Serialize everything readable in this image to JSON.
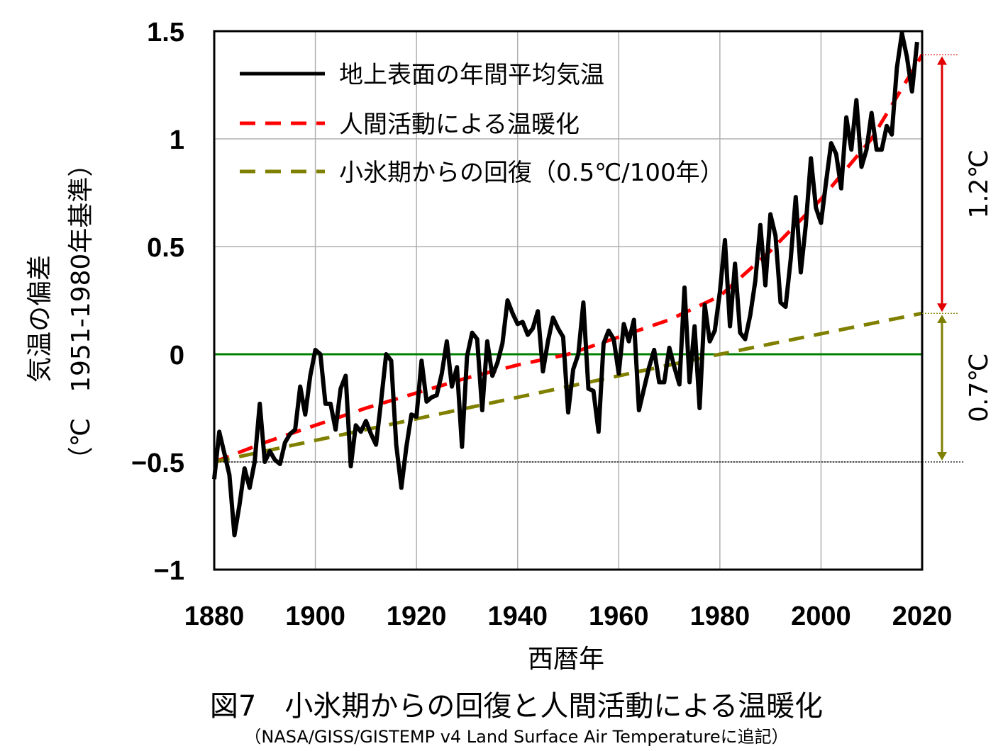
{
  "chart_data": {
    "type": "line",
    "title": "図7　小氷期からの回復と人間活動による温暖化",
    "source": "（NASA/GISS/GISTEMP v4 Land Surface Air Temperatureに追記）",
    "xlabel": "西暦年",
    "ylabel_line1": "気温の偏差",
    "ylabel_line2": "（℃　1951-1980年基準）",
    "xlim": [
      1880,
      2020
    ],
    "ylim": [
      -1,
      1.5
    ],
    "grid": true,
    "legend_position": "top-left",
    "x_ticks": [
      "1880",
      "1900",
      "1920",
      "1940",
      "1960",
      "1980",
      "2000",
      "2020"
    ],
    "y_ticks": [
      "1.5",
      "1",
      "0.5",
      "0",
      "−0.5",
      "−1"
    ],
    "y_tick_values": [
      1.5,
      1,
      0.5,
      0,
      -0.5,
      -1
    ],
    "series": [
      {
        "name": "地上表面の年間平均気温",
        "style": "solid",
        "color": "#000000",
        "x": [
          1880,
          1881,
          1882,
          1883,
          1884,
          1885,
          1886,
          1887,
          1888,
          1889,
          1890,
          1891,
          1892,
          1893,
          1894,
          1895,
          1896,
          1897,
          1898,
          1899,
          1900,
          1901,
          1902,
          1903,
          1904,
          1905,
          1906,
          1907,
          1908,
          1909,
          1910,
          1911,
          1912,
          1913,
          1914,
          1915,
          1916,
          1917,
          1918,
          1919,
          1920,
          1921,
          1922,
          1923,
          1924,
          1925,
          1926,
          1927,
          1928,
          1929,
          1930,
          1931,
          1932,
          1933,
          1934,
          1935,
          1936,
          1937,
          1938,
          1939,
          1940,
          1941,
          1942,
          1943,
          1944,
          1945,
          1946,
          1947,
          1948,
          1949,
          1950,
          1951,
          1952,
          1953,
          1954,
          1955,
          1956,
          1957,
          1958,
          1959,
          1960,
          1961,
          1962,
          1963,
          1964,
          1965,
          1966,
          1967,
          1968,
          1969,
          1970,
          1971,
          1972,
          1973,
          1974,
          1975,
          1976,
          1977,
          1978,
          1979,
          1980,
          1981,
          1982,
          1983,
          1984,
          1985,
          1986,
          1987,
          1988,
          1989,
          1990,
          1991,
          1992,
          1993,
          1994,
          1995,
          1996,
          1997,
          1998,
          1999,
          2000,
          2001,
          2002,
          2003,
          2004,
          2005,
          2006,
          2007,
          2008,
          2009,
          2010,
          2011,
          2012,
          2013,
          2014,
          2015,
          2016,
          2017,
          2018,
          2019
        ],
        "values": [
          -0.58,
          -0.36,
          -0.46,
          -0.56,
          -0.84,
          -0.7,
          -0.53,
          -0.62,
          -0.5,
          -0.23,
          -0.5,
          -0.45,
          -0.49,
          -0.51,
          -0.41,
          -0.37,
          -0.35,
          -0.15,
          -0.28,
          -0.1,
          0.02,
          0.0,
          -0.23,
          -0.23,
          -0.35,
          -0.16,
          -0.1,
          -0.52,
          -0.33,
          -0.36,
          -0.31,
          -0.37,
          -0.42,
          -0.22,
          0.0,
          -0.03,
          -0.42,
          -0.62,
          -0.43,
          -0.28,
          -0.29,
          -0.03,
          -0.22,
          -0.2,
          -0.19,
          -0.09,
          0.06,
          -0.15,
          -0.06,
          -0.43,
          -0.01,
          0.1,
          0.07,
          -0.26,
          0.06,
          -0.1,
          -0.04,
          0.05,
          0.25,
          0.19,
          0.14,
          0.15,
          0.09,
          0.12,
          0.2,
          -0.08,
          0.06,
          0.17,
          0.12,
          0.08,
          -0.27,
          -0.07,
          0.0,
          0.24,
          -0.16,
          -0.17,
          -0.36,
          0.05,
          0.11,
          0.07,
          -0.09,
          0.14,
          0.06,
          0.16,
          -0.26,
          -0.16,
          -0.06,
          0.02,
          -0.13,
          -0.13,
          0.03,
          -0.06,
          -0.14,
          0.31,
          -0.13,
          0.13,
          -0.25,
          0.23,
          0.06,
          0.11,
          0.29,
          0.53,
          0.13,
          0.42,
          0.1,
          0.07,
          0.18,
          0.34,
          0.6,
          0.32,
          0.65,
          0.55,
          0.24,
          0.22,
          0.44,
          0.73,
          0.38,
          0.6,
          0.91,
          0.68,
          0.61,
          0.8,
          0.98,
          0.93,
          0.77,
          1.1,
          0.95,
          1.18,
          0.87,
          0.95,
          1.12,
          0.95,
          0.95,
          1.06,
          1.02,
          1.33,
          1.49,
          1.38,
          1.22,
          1.45
        ]
      },
      {
        "name": "人間活動による温暖化",
        "style": "dashed",
        "color": "#ff0000",
        "x": [
          1880,
          1890,
          1900,
          1910,
          1920,
          1930,
          1940,
          1950,
          1960,
          1970,
          1980,
          1990,
          2000,
          2010,
          2020
        ],
        "values": [
          -0.5,
          -0.41,
          -0.33,
          -0.25,
          -0.18,
          -0.11,
          -0.05,
          0.0,
          0.08,
          0.16,
          0.27,
          0.48,
          0.72,
          1.0,
          1.39
        ]
      },
      {
        "name": "小氷期からの回復（0.5℃/100年）",
        "style": "dashed",
        "color": "#808000",
        "x": [
          1880,
          1980,
          2020
        ],
        "values": [
          -0.5,
          0.0,
          0.19
        ]
      }
    ],
    "annotations": [
      {
        "text": "1.2℃",
        "from": 0.19,
        "to": 1.39,
        "color": "#e00000"
      },
      {
        "text": "0.7℃",
        "from": -0.5,
        "to": 0.19,
        "color": "#808000"
      }
    ]
  }
}
